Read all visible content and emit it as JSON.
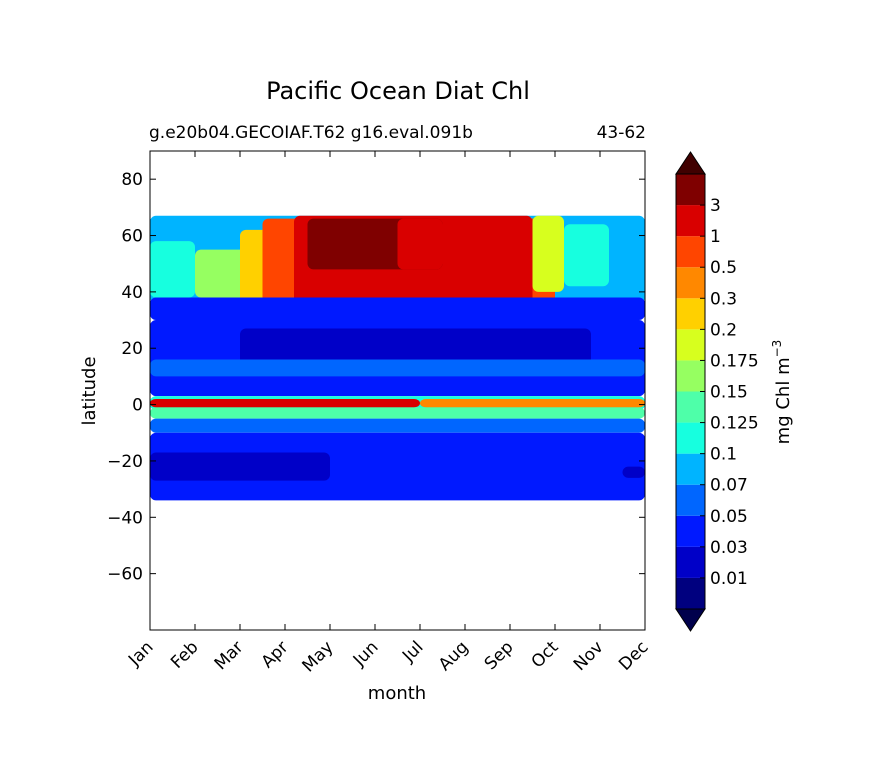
{
  "chart_data": {
    "type": "heatmap",
    "title": "Pacific Ocean Diat Chl",
    "subtitle_left": "g.e20b04.GECOIAF.T62 g16.eval.091b",
    "subtitle_right": "43-62",
    "xlabel": "month",
    "ylabel": "latitude",
    "xticks": [
      "Jan",
      "Feb",
      "Mar",
      "Apr",
      "May",
      "Jun",
      "Jul",
      "Aug",
      "Sep",
      "Oct",
      "Nov",
      "Dec"
    ],
    "yticks": [
      {
        "value": 80,
        "label": "80"
      },
      {
        "value": 60,
        "label": "60"
      },
      {
        "value": 40,
        "label": "40"
      },
      {
        "value": 20,
        "label": "20"
      },
      {
        "value": 0,
        "label": "0"
      },
      {
        "value": -20,
        "label": "−20"
      },
      {
        "value": -40,
        "label": "−40"
      },
      {
        "value": -60,
        "label": "−60"
      }
    ],
    "xlim": [
      0,
      11
    ],
    "ylim": [
      -80,
      90
    ],
    "data_lat_range": [
      -34,
      67
    ],
    "colorbar": {
      "label": "mg Chl m",
      "label_exponent": "−3",
      "extend": "both",
      "levels": [
        0.01,
        0.03,
        0.05,
        0.07,
        0.1,
        0.125,
        0.15,
        0.175,
        0.2,
        0.3,
        0.5,
        1,
        3
      ],
      "tick_labels": [
        "0.01",
        "0.03",
        "0.05",
        "0.07",
        "0.1",
        "0.125",
        "0.15",
        "0.175",
        "0.2",
        "0.3",
        "0.5",
        "1",
        "3"
      ],
      "colors": [
        "#00007f",
        "#0000c8",
        "#0019ff",
        "#0066ff",
        "#00b4ff",
        "#17ffdf",
        "#4effa9",
        "#96ff61",
        "#d7ff1e",
        "#ffd000",
        "#ff8800",
        "#ff4500",
        "#d90000",
        "#7f0000"
      ],
      "under_color": "#00004c",
      "over_color": "#400000"
    },
    "grid": false,
    "regions": [
      {
        "lat": [
          36,
          67
        ],
        "month": [
          0,
          11
        ],
        "level": 4
      },
      {
        "lat": [
          38,
          58
        ],
        "month": [
          0,
          1
        ],
        "level": 5
      },
      {
        "lat": [
          38,
          55
        ],
        "month": [
          1,
          2.2
        ],
        "level": 7
      },
      {
        "lat": [
          33,
          62
        ],
        "month": [
          2,
          3.2
        ],
        "level": 9
      },
      {
        "lat": [
          33,
          66
        ],
        "month": [
          2.5,
          9
        ],
        "level": 11
      },
      {
        "lat": [
          44,
          66
        ],
        "month": [
          7,
          9
        ],
        "level": 11
      },
      {
        "lat": [
          34,
          67
        ],
        "month": [
          3.2,
          8.5
        ],
        "level": 12
      },
      {
        "lat": [
          48,
          66
        ],
        "month": [
          3.5,
          6.5
        ],
        "level": 13
      },
      {
        "lat": [
          48,
          66
        ],
        "month": [
          5.5,
          6.5
        ],
        "level": 12
      },
      {
        "lat": [
          40,
          67
        ],
        "month": [
          8.5,
          9.2
        ],
        "level": 8
      },
      {
        "lat": [
          42,
          64
        ],
        "month": [
          9.2,
          10.2
        ],
        "level": 5
      },
      {
        "lat": [
          30,
          38
        ],
        "month": [
          0,
          11
        ],
        "level": 2
      },
      {
        "lat": [
          3,
          30
        ],
        "month": [
          0,
          11
        ],
        "level": 2
      },
      {
        "lat": [
          13,
          27
        ],
        "month": [
          2,
          9.8
        ],
        "level": 1
      },
      {
        "lat": [
          10,
          16
        ],
        "month": [
          0,
          11
        ],
        "level": 3
      },
      {
        "lat": [
          5,
          9
        ],
        "month": [
          0,
          11
        ],
        "level": 2
      },
      {
        "lat": [
          -2,
          3
        ],
        "month": [
          0,
          11
        ],
        "level": 5
      },
      {
        "lat": [
          -1,
          2
        ],
        "month": [
          0,
          6
        ],
        "level": 12
      },
      {
        "lat": [
          -1,
          2
        ],
        "month": [
          6,
          11
        ],
        "level": 10
      },
      {
        "lat": [
          -5,
          -1
        ],
        "month": [
          0,
          11
        ],
        "level": 6
      },
      {
        "lat": [
          -10,
          -5
        ],
        "month": [
          0,
          11
        ],
        "level": 3
      },
      {
        "lat": [
          -34,
          -10
        ],
        "month": [
          0,
          11
        ],
        "level": 2
      },
      {
        "lat": [
          -27,
          -17
        ],
        "month": [
          0,
          4
        ],
        "level": 1
      },
      {
        "lat": [
          -26,
          -22
        ],
        "month": [
          10.5,
          11
        ],
        "level": 1
      }
    ]
  }
}
